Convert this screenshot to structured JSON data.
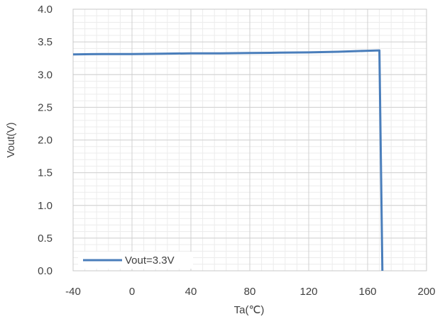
{
  "chart_data": {
    "type": "line",
    "title": "",
    "xlabel": "Ta(℃)",
    "ylabel": "Vout(V)",
    "xlim": [
      -40,
      200
    ],
    "ylim": [
      0,
      4.0
    ],
    "x_ticks": [
      -40,
      0,
      40,
      80,
      120,
      160,
      200
    ],
    "x_tick_labels": [
      "-40",
      "0",
      "40",
      "80",
      "120",
      "160",
      "200"
    ],
    "y_ticks": [
      0,
      0.5,
      1.0,
      1.5,
      2.0,
      2.5,
      3.0,
      3.5,
      4.0
    ],
    "y_tick_labels": [
      "0.0",
      "0.5",
      "1.0",
      "1.5",
      "2.0",
      "2.5",
      "3.0",
      "3.5",
      "4.0"
    ],
    "grid": "major and minor",
    "legend_position": "bottom-left",
    "series": [
      {
        "name": "Vout=3.3V",
        "color": "#4a7ebb",
        "x": [
          -40,
          -20,
          0,
          20,
          40,
          60,
          80,
          100,
          120,
          140,
          160,
          168,
          170
        ],
        "y": [
          3.31,
          3.315,
          3.315,
          3.32,
          3.325,
          3.325,
          3.33,
          3.335,
          3.34,
          3.35,
          3.365,
          3.37,
          0
        ]
      }
    ]
  }
}
